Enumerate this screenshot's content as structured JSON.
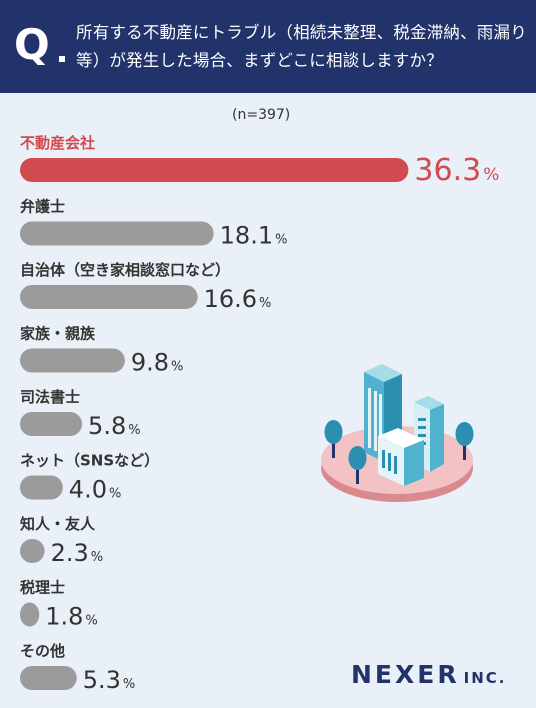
{
  "header": {
    "q_label": "Q",
    "question": "所有する不動産にトラブル（相続未整理、税金滞納、雨漏り等）が発生した場合、まずどこに相談しますか？"
  },
  "chart_data": {
    "type": "bar",
    "orientation": "horizontal",
    "note": "(n=397)",
    "unit": "%",
    "categories": [
      "不動産会社",
      "弁護士",
      "自治体（空き家相談窓口など）",
      "家族・親族",
      "司法書士",
      "ネット（SNSなど）",
      "知人・友人",
      "税理士",
      "その他"
    ],
    "values": [
      36.3,
      18.1,
      16.6,
      9.8,
      5.8,
      4.0,
      2.3,
      1.8,
      5.3
    ],
    "value_labels": [
      "36.3",
      "18.1",
      "16.6",
      "9.8",
      "5.8",
      "4.0",
      "2.3",
      "1.8",
      "5.3"
    ],
    "highlight_index": 0,
    "colors": {
      "highlight": "#d04a4f",
      "bar": "#9b9b9b",
      "label": "#333333"
    }
  },
  "logo": {
    "name": "NEXER",
    "suffix": "INC."
  },
  "colors": {
    "header_bg": "#22336b",
    "page_bg": "#e9f0f7"
  }
}
